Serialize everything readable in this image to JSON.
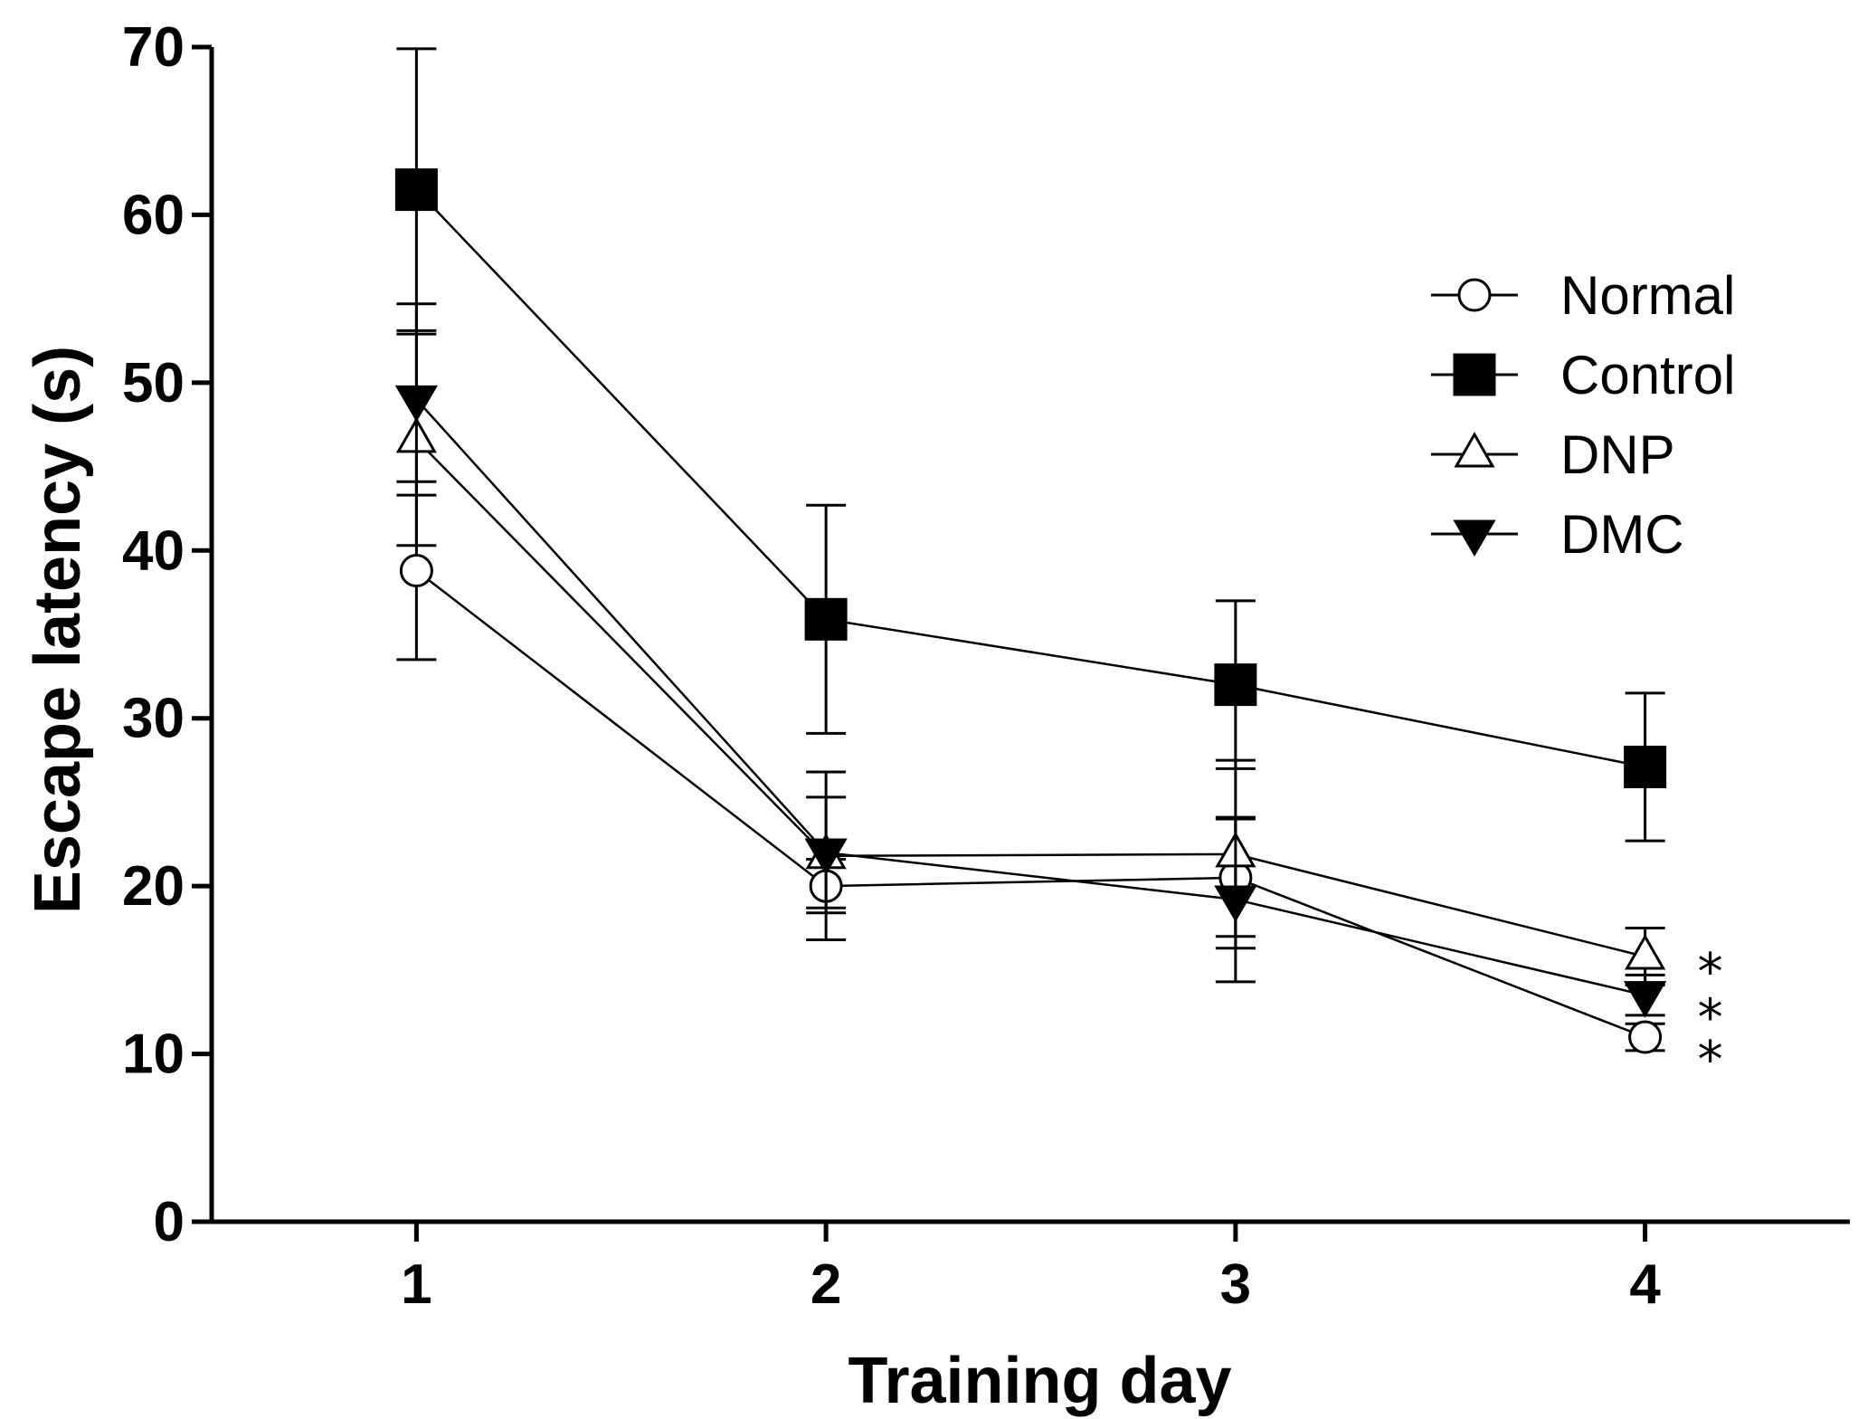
{
  "chart_data": {
    "type": "line",
    "xlabel": "Training day",
    "ylabel": "Escape latency (s)",
    "x": [
      1,
      2,
      3,
      4
    ],
    "xticks": [
      "1",
      "2",
      "3",
      "4"
    ],
    "xlim": [
      0.5,
      4.5
    ],
    "ylim": [
      0,
      70
    ],
    "yticks": [
      "0",
      "10",
      "20",
      "30",
      "40",
      "50",
      "60",
      "70"
    ],
    "grid": false,
    "legend_position": "top-right",
    "series": [
      {
        "name": "Normal",
        "marker": "circle-open",
        "values": [
          38.8,
          20.0,
          20.5,
          11.0
        ],
        "errors": [
          5.3,
          1.6,
          3.5,
          0.8
        ]
      },
      {
        "name": "Control",
        "marker": "square-filled",
        "values": [
          61.5,
          35.9,
          32.0,
          27.1
        ],
        "errors": [
          8.4,
          6.8,
          5.0,
          4.4
        ]
      },
      {
        "name": "DNP",
        "marker": "triangle-up-open",
        "values": [
          46.6,
          21.8,
          21.9,
          15.8
        ],
        "errors": [
          6.3,
          5.0,
          5.6,
          1.7
        ]
      },
      {
        "name": "DMC",
        "marker": "triangle-down-filled",
        "values": [
          49.0,
          22.0,
          19.2,
          13.5
        ],
        "errors": [
          5.7,
          3.3,
          4.9,
          1.2
        ]
      }
    ],
    "annotations": [
      {
        "text": "*",
        "x": 4,
        "y": 15.8
      },
      {
        "text": "*",
        "x": 4,
        "y": 13.5
      },
      {
        "text": "*",
        "x": 4,
        "y": 11.0
      }
    ]
  }
}
